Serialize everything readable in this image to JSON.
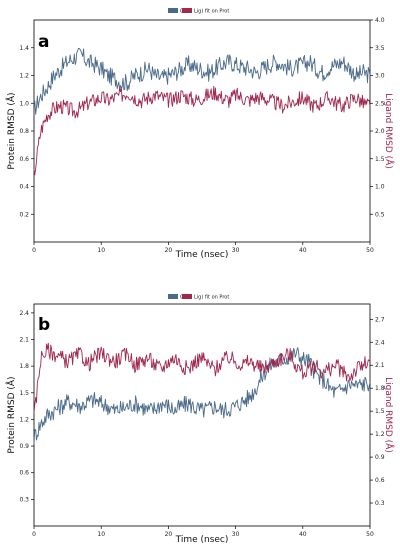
{
  "chart_data": [
    {
      "type": "line",
      "panel_label": "a",
      "legend": [
        {
          "label": "Cα",
          "color": "#4a6a8a"
        },
        {
          "label": "Lig) fit on Prot",
          "color": "#a1284d"
        }
      ],
      "xlabel": "Time (nsec)",
      "ylabel_left": "Protein RMSD (Å)",
      "ylabel_right": "Ligand RMSD (Å)",
      "xlim": [
        0,
        50
      ],
      "ylim_left": [
        0,
        1.6
      ],
      "ylim_right": [
        0,
        4.0
      ],
      "x_ticks": [
        "0",
        "10",
        "20",
        "30",
        "40",
        "50"
      ],
      "yticks_left": [
        "0.2",
        "0.4",
        "0.6",
        "0.8",
        "1.0",
        "1.2",
        "1.4"
      ],
      "yticks_right": [
        "0.5",
        "1.0",
        "1.5",
        "2.0",
        "2.5",
        "3.0",
        "3.5",
        "4.0"
      ],
      "grid": false,
      "legend_position": "top-center",
      "series": [
        {
          "axis": "left",
          "color": "#4a6a8a",
          "x": [
            0,
            1,
            2,
            3,
            4,
            5,
            6,
            7,
            8,
            9,
            10,
            11,
            12,
            13,
            14,
            15,
            16,
            17,
            18,
            19,
            20,
            21,
            22,
            23,
            24,
            25,
            26,
            27,
            28,
            29,
            30,
            31,
            32,
            33,
            34,
            35,
            36,
            37,
            38,
            39,
            40,
            41,
            42,
            43,
            44,
            45,
            46,
            47,
            48,
            49,
            50
          ],
          "values": [
            0.95,
            1.05,
            1.12,
            1.2,
            1.25,
            1.3,
            1.33,
            1.35,
            1.3,
            1.28,
            1.25,
            1.2,
            1.18,
            1.15,
            1.15,
            1.2,
            1.22,
            1.25,
            1.2,
            1.18,
            1.2,
            1.22,
            1.25,
            1.28,
            1.26,
            1.24,
            1.22,
            1.25,
            1.28,
            1.3,
            1.28,
            1.26,
            1.25,
            1.22,
            1.25,
            1.28,
            1.3,
            1.28,
            1.25,
            1.26,
            1.28,
            1.3,
            1.25,
            1.22,
            1.26,
            1.28,
            1.3,
            1.25,
            1.2,
            1.22,
            1.2
          ]
        },
        {
          "axis": "right",
          "color": "#a1284d",
          "x": [
            0,
            1,
            2,
            3,
            4,
            5,
            6,
            7,
            8,
            9,
            10,
            11,
            12,
            13,
            14,
            15,
            16,
            17,
            18,
            19,
            20,
            21,
            22,
            23,
            24,
            25,
            26,
            27,
            28,
            29,
            30,
            31,
            32,
            33,
            34,
            35,
            36,
            37,
            38,
            39,
            40,
            41,
            42,
            43,
            44,
            45,
            46,
            47,
            48,
            49,
            50
          ],
          "values": [
            1.2,
            2.0,
            2.3,
            2.4,
            2.45,
            2.4,
            2.35,
            2.4,
            2.5,
            2.55,
            2.6,
            2.55,
            2.6,
            2.65,
            2.7,
            2.6,
            2.55,
            2.6,
            2.65,
            2.6,
            2.55,
            2.6,
            2.65,
            2.6,
            2.55,
            2.6,
            2.65,
            2.7,
            2.6,
            2.55,
            2.65,
            2.6,
            2.55,
            2.6,
            2.6,
            2.55,
            2.5,
            2.45,
            2.5,
            2.55,
            2.6,
            2.5,
            2.45,
            2.55,
            2.6,
            2.5,
            2.45,
            2.55,
            2.6,
            2.5,
            2.45
          ]
        }
      ]
    },
    {
      "type": "line",
      "panel_label": "b",
      "legend": [
        {
          "label": "Cα",
          "color": "#4a6a8a"
        },
        {
          "label": "Lig) fit on Prot",
          "color": "#a1284d"
        }
      ],
      "xlabel": "Time (nsec)",
      "ylabel_left": "Protein RMSD (Å)",
      "ylabel_right": "Ligand RMSD (Å)",
      "xlim": [
        0,
        50
      ],
      "ylim_left": [
        0,
        2.5
      ],
      "ylim_right": [
        0,
        2.9
      ],
      "x_ticks": [
        "0",
        "10",
        "20",
        "30",
        "40",
        "50"
      ],
      "yticks_left": [
        "0.3",
        "0.6",
        "0.9",
        "1.2",
        "1.5",
        "1.8",
        "2.1",
        "2.4"
      ],
      "yticks_right": [
        "0.3",
        "0.6",
        "0.9",
        "1.2",
        "1.5",
        "1.8",
        "2.1",
        "2.4",
        "2.7"
      ],
      "grid": false,
      "legend_position": "top-center",
      "series": [
        {
          "axis": "left",
          "color": "#4a6a8a",
          "x": [
            0,
            1,
            2,
            3,
            4,
            5,
            6,
            7,
            8,
            9,
            10,
            11,
            12,
            13,
            14,
            15,
            16,
            17,
            18,
            19,
            20,
            21,
            22,
            23,
            24,
            25,
            26,
            27,
            28,
            29,
            30,
            31,
            32,
            33,
            34,
            35,
            36,
            37,
            38,
            39,
            40,
            41,
            42,
            43,
            44,
            45,
            46,
            47,
            48,
            49,
            50
          ],
          "values": [
            1.0,
            1.15,
            1.25,
            1.3,
            1.35,
            1.4,
            1.38,
            1.35,
            1.4,
            1.42,
            1.38,
            1.35,
            1.3,
            1.32,
            1.35,
            1.38,
            1.35,
            1.3,
            1.32,
            1.38,
            1.35,
            1.3,
            1.35,
            1.38,
            1.33,
            1.3,
            1.32,
            1.35,
            1.3,
            1.32,
            1.35,
            1.4,
            1.45,
            1.55,
            1.7,
            1.8,
            1.85,
            1.88,
            1.9,
            1.95,
            1.88,
            1.85,
            1.7,
            1.65,
            1.55,
            1.5,
            1.55,
            1.6,
            1.58,
            1.6,
            1.62
          ]
        },
        {
          "axis": "right",
          "color": "#a1284d",
          "x": [
            0,
            1,
            2,
            3,
            4,
            5,
            6,
            7,
            8,
            9,
            10,
            11,
            12,
            13,
            14,
            15,
            16,
            17,
            18,
            19,
            20,
            21,
            22,
            23,
            24,
            25,
            26,
            27,
            28,
            29,
            30,
            31,
            32,
            33,
            34,
            35,
            36,
            37,
            38,
            39,
            40,
            41,
            42,
            43,
            44,
            45,
            46,
            47,
            48,
            49,
            50
          ],
          "values": [
            1.4,
            2.2,
            2.3,
            2.25,
            2.2,
            2.15,
            2.2,
            2.25,
            2.1,
            2.2,
            2.25,
            2.2,
            2.15,
            2.2,
            2.25,
            2.1,
            2.15,
            2.2,
            2.1,
            2.05,
            2.15,
            2.2,
            2.1,
            2.05,
            2.15,
            2.2,
            2.1,
            2.05,
            2.15,
            2.2,
            2.15,
            2.1,
            2.15,
            2.1,
            2.05,
            2.1,
            2.15,
            2.2,
            2.25,
            2.1,
            2.0,
            2.05,
            2.1,
            2.0,
            2.05,
            2.1,
            2.0,
            1.95,
            2.05,
            2.1,
            2.15
          ]
        }
      ]
    }
  ]
}
